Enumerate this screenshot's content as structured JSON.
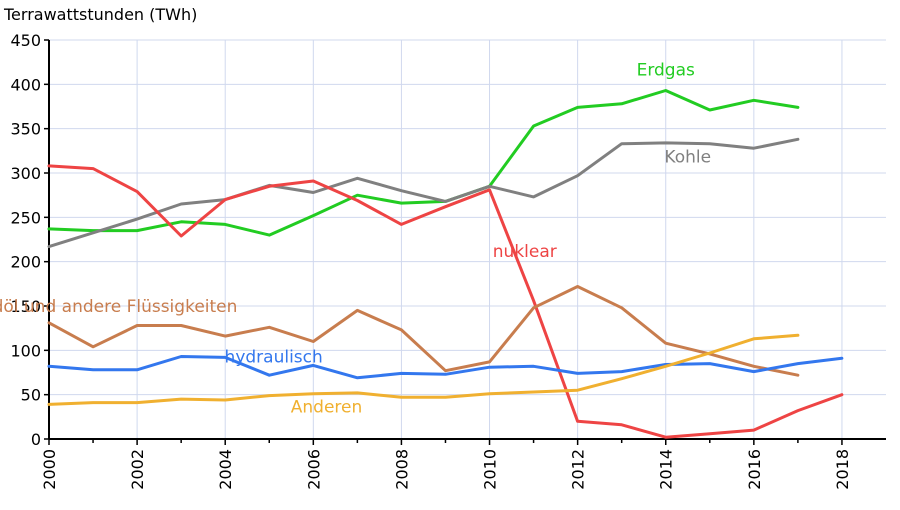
{
  "chart_data": {
    "type": "line",
    "ylabel": "Terrawattstunden (TWh)",
    "xlabel": "",
    "xlim": [
      2000,
      2019
    ],
    "ylim": [
      0,
      450
    ],
    "grid": true,
    "legend": "inline labels",
    "x_ticks": [
      2000,
      2002,
      2004,
      2006,
      2008,
      2010,
      2012,
      2014,
      2016,
      2018
    ],
    "y_ticks": [
      0,
      50,
      100,
      150,
      200,
      250,
      300,
      350,
      400,
      450
    ],
    "series": [
      {
        "name": "Erdgas",
        "color": "#22cc22",
        "label_at": [
          2014,
          410
        ],
        "x": [
          2000,
          2001,
          2002,
          2003,
          2004,
          2005,
          2006,
          2007,
          2008,
          2009,
          2010,
          2011,
          2012,
          2013,
          2014,
          2015,
          2016,
          2017
        ],
        "values": [
          237,
          235,
          235,
          245,
          242,
          230,
          252,
          275,
          266,
          268,
          285,
          353,
          374,
          378,
          393,
          371,
          382,
          374
        ]
      },
      {
        "name": "Kohle",
        "color": "#808080",
        "label_at": [
          2014.5,
          312
        ],
        "x": [
          2000,
          2002,
          2003,
          2004,
          2005,
          2006,
          2007,
          2008,
          2009,
          2010,
          2011,
          2012,
          2013,
          2014,
          2015,
          2016,
          2017
        ],
        "values": [
          217,
          248,
          265,
          270,
          286,
          278,
          294,
          280,
          268,
          285,
          273,
          297,
          333,
          334,
          333,
          328,
          338
        ]
      },
      {
        "name": "nuklear",
        "color": "#ee4444",
        "label_at": [
          2010.8,
          205
        ],
        "x": [
          2000,
          2001,
          2002,
          2003,
          2004,
          2005,
          2006,
          2007,
          2008,
          2009,
          2010,
          2011,
          2012,
          2013,
          2014,
          2015,
          2016,
          2017,
          2018
        ],
        "values": [
          308,
          305,
          279,
          229,
          270,
          285,
          291,
          269,
          242,
          262,
          281,
          156,
          20,
          16,
          2,
          6,
          10,
          32,
          50
        ]
      },
      {
        "name": "Erdöl und andere Flüssigkeiten",
        "color": "#c87d4e",
        "label_at": [
          2001.3,
          143
        ],
        "x": [
          2000,
          2001,
          2002,
          2003,
          2004,
          2005,
          2006,
          2007,
          2008,
          2009,
          2010,
          2011,
          2012,
          2013,
          2014,
          2015,
          2016,
          2017
        ],
        "values": [
          131,
          104,
          128,
          128,
          116,
          126,
          110,
          145,
          123,
          77,
          87,
          148,
          172,
          148,
          108,
          96,
          82,
          72
        ]
      },
      {
        "name": "hydraulisch",
        "color": "#3377ee",
        "label_at": [
          2005.1,
          86
        ],
        "x": [
          2000,
          2001,
          2002,
          2003,
          2004,
          2005,
          2006,
          2007,
          2008,
          2009,
          2010,
          2011,
          2012,
          2013,
          2014,
          2015,
          2016,
          2017,
          2018
        ],
        "values": [
          82,
          78,
          78,
          93,
          92,
          72,
          83,
          69,
          74,
          73,
          81,
          82,
          74,
          76,
          84,
          85,
          76,
          85,
          91
        ]
      },
      {
        "name": "Anderen",
        "color": "#f0b030",
        "label_at": [
          2006.3,
          30
        ],
        "x": [
          2000,
          2001,
          2002,
          2003,
          2004,
          2005,
          2006,
          2007,
          2008,
          2009,
          2010,
          2011,
          2012,
          2013,
          2014,
          2015,
          2016,
          2017
        ],
        "values": [
          39,
          41,
          41,
          45,
          44,
          49,
          51,
          52,
          47,
          47,
          51,
          53,
          55,
          68,
          82,
          97,
          113,
          117
        ]
      }
    ]
  }
}
